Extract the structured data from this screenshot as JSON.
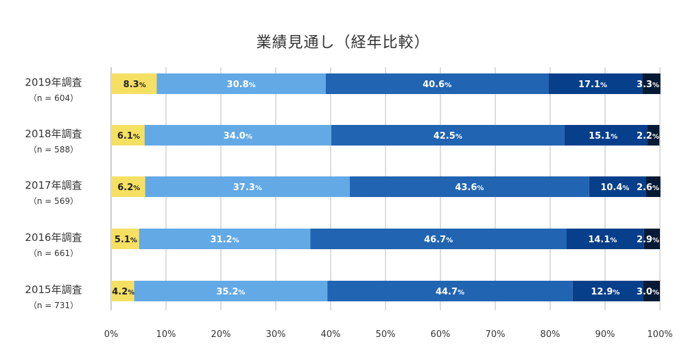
{
  "chart_data": {
    "type": "bar",
    "orientation": "horizontal",
    "stacked": true,
    "title": "業績見通し（経年比較）",
    "categories": [
      {
        "label": "2019年調査",
        "n": "（n = 604）"
      },
      {
        "label": "2018年調査",
        "n": "（n = 588）"
      },
      {
        "label": "2017年調査",
        "n": "（n = 569）"
      },
      {
        "label": "2016年調査",
        "n": "（n = 661）"
      },
      {
        "label": "2015年調査",
        "n": "（n = 731）"
      }
    ],
    "series": [
      {
        "name": "series-1",
        "color": "#f5e063",
        "text_color": "#222222",
        "values": [
          8.3,
          6.1,
          6.2,
          5.1,
          4.2
        ]
      },
      {
        "name": "series-2",
        "color": "#63a9e5",
        "text_color": "#ffffff",
        "values": [
          30.8,
          34.0,
          37.3,
          31.2,
          35.2
        ]
      },
      {
        "name": "series-3",
        "color": "#2164b1",
        "text_color": "#ffffff",
        "values": [
          40.6,
          42.5,
          43.6,
          46.7,
          44.7
        ]
      },
      {
        "name": "series-4",
        "color": "#073f8b",
        "text_color": "#ffffff",
        "values": [
          17.1,
          15.1,
          10.4,
          14.1,
          12.9
        ]
      },
      {
        "name": "series-5",
        "color": "#061a36",
        "text_color": "#ffffff",
        "values": [
          3.3,
          2.2,
          2.6,
          2.9,
          3.0
        ]
      }
    ],
    "value_suffix": "%",
    "x_ticks": [
      "0%",
      "10%",
      "20%",
      "30%",
      "40%",
      "50%",
      "60%",
      "70%",
      "80%",
      "90%",
      "100%"
    ],
    "xlim": [
      0,
      100
    ],
    "grid": true,
    "legend": "none"
  }
}
